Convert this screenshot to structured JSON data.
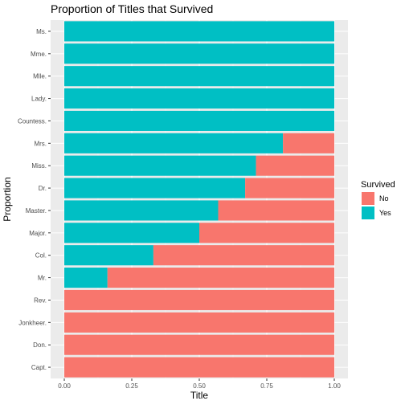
{
  "chart_data": {
    "type": "bar",
    "orientation": "horizontal",
    "stacked": true,
    "title": "Proportion of Titles that Survived",
    "xlabel": "Title",
    "ylabel": "Proportion",
    "xlim": [
      0,
      1
    ],
    "xticks": [
      "0.00",
      "0.25",
      "0.50",
      "0.75",
      "1.00"
    ],
    "xtick_values": [
      0,
      0.25,
      0.5,
      0.75,
      1.0
    ],
    "grid": true,
    "legend": {
      "title": "Survived",
      "position": "right"
    },
    "categories": [
      "Ms.",
      "Mme.",
      "Mlle.",
      "Lady.",
      "Countess.",
      "Mrs.",
      "Miss.",
      "Dr.",
      "Master.",
      "Major.",
      "Col.",
      "Mr.",
      "Rev.",
      "Jonkheer.",
      "Don.",
      "Capt."
    ],
    "series": [
      {
        "name": "Yes",
        "color": "#00BFC4",
        "values": [
          1,
          1,
          1,
          1,
          1,
          0.81,
          0.71,
          0.67,
          0.57,
          0.5,
          0.33,
          0.16,
          0,
          0,
          0,
          0
        ]
      },
      {
        "name": "No",
        "color": "#F8766D",
        "values": [
          0,
          0,
          0,
          0,
          0,
          0.19,
          0.29,
          0.33,
          0.43,
          0.5,
          0.67,
          0.84,
          1,
          1,
          1,
          1
        ]
      }
    ],
    "legend_order": [
      "No",
      "Yes"
    ]
  },
  "colors": {
    "panel_background": "#EBEBEB",
    "grid_major": "#FFFFFF",
    "grid_minor": "#F5F5F5",
    "tick_text": "#4D4D4D",
    "title_text": "#000000"
  }
}
